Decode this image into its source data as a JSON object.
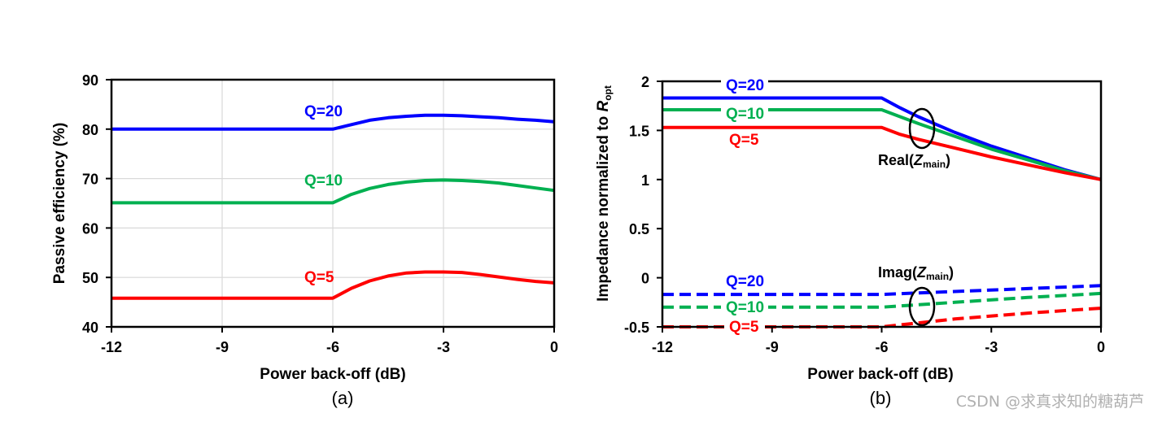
{
  "watermark": "CSDN @求真求知的糖葫芦",
  "chart_data": [
    {
      "type": "line",
      "caption": "(a)",
      "xlabel": "Power back-off (dB)",
      "ylabel": "Passive efficiency (%)",
      "xlim": [
        -12,
        0
      ],
      "ylim": [
        40,
        90
      ],
      "xticks": [
        -12,
        -9,
        -6,
        -3,
        0
      ],
      "xtick_labels": [
        "-12",
        "-9",
        "-6",
        "-3",
        "0"
      ],
      "yticks": [
        40,
        50,
        60,
        70,
        80,
        90
      ],
      "ytick_labels": [
        "40",
        "50",
        "60",
        "70",
        "80",
        "90"
      ],
      "grid": true,
      "series": [
        {
          "name": "Q=20",
          "color": "#0000ff",
          "dash": false,
          "x": [
            -12,
            -6.2,
            -6,
            -5.5,
            -5,
            -4.5,
            -4,
            -3.5,
            -3,
            -2.5,
            -2,
            -1.5,
            -1,
            -0.5,
            0
          ],
          "y": [
            80,
            80,
            80,
            80.9,
            81.8,
            82.3,
            82.6,
            82.8,
            82.8,
            82.7,
            82.5,
            82.3,
            82.0,
            81.8,
            81.5
          ]
        },
        {
          "name": "Q=10",
          "color": "#00b050",
          "dash": false,
          "x": [
            -12,
            -6.2,
            -6,
            -5.5,
            -5,
            -4.5,
            -4,
            -3.5,
            -3,
            -2.5,
            -2,
            -1.5,
            -1,
            -0.5,
            0
          ],
          "y": [
            65.1,
            65.1,
            65.1,
            66.8,
            68.0,
            68.8,
            69.3,
            69.6,
            69.7,
            69.6,
            69.4,
            69.1,
            68.6,
            68.1,
            67.6
          ]
        },
        {
          "name": "Q=5",
          "color": "#ff0000",
          "dash": false,
          "x": [
            -12,
            -6.2,
            -6,
            -5.5,
            -5,
            -4.5,
            -4,
            -3.5,
            -3,
            -2.5,
            -2,
            -1.5,
            -1,
            -0.5,
            0
          ],
          "y": [
            45.8,
            45.8,
            45.8,
            47.8,
            49.3,
            50.3,
            50.9,
            51.1,
            51.1,
            51.0,
            50.6,
            50.1,
            49.6,
            49.2,
            48.9
          ]
        }
      ]
    },
    {
      "type": "line",
      "caption": "(b)",
      "xlabel": "Power back-off (dB)",
      "ylabel_main": "Impedance normalized to ",
      "ylabel_var": "R",
      "ylabel_sub": "opt",
      "xlim": [
        -12,
        0
      ],
      "ylim": [
        -0.5,
        2
      ],
      "xticks": [
        -12,
        -9,
        -6,
        -3,
        0
      ],
      "xtick_labels": [
        "-12",
        "-9",
        "-6",
        "-3",
        "0"
      ],
      "yticks": [
        -0.5,
        0,
        0.5,
        1,
        1.5,
        2
      ],
      "ytick_labels": [
        "-0.5",
        "0",
        "0.5",
        "1",
        "1.5",
        "2"
      ],
      "grid": false,
      "annotations": [
        {
          "name": "real",
          "pre": "Real(",
          "var": "Z",
          "sub": "main",
          "post": ")"
        },
        {
          "name": "imag",
          "pre": "Imag(",
          "var": "Z",
          "sub": "main",
          "post": ")"
        }
      ],
      "series": [
        {
          "name": "Q=20",
          "component": "Real",
          "color": "#0000ff",
          "dash": false,
          "x": [
            -12,
            -6.2,
            -6,
            -5.5,
            -5,
            -4,
            -3,
            -2,
            -1,
            0
          ],
          "y": [
            1.83,
            1.83,
            1.83,
            1.73,
            1.64,
            1.48,
            1.34,
            1.22,
            1.1,
            1.0
          ]
        },
        {
          "name": "Q=10",
          "component": "Real",
          "color": "#00b050",
          "dash": false,
          "x": [
            -12,
            -6.2,
            -6,
            -5.5,
            -5,
            -4,
            -3,
            -2,
            -1,
            0
          ],
          "y": [
            1.71,
            1.71,
            1.71,
            1.64,
            1.57,
            1.44,
            1.31,
            1.2,
            1.09,
            1.0
          ]
        },
        {
          "name": "Q=5",
          "component": "Real",
          "color": "#ff0000",
          "dash": false,
          "x": [
            -12,
            -6.2,
            -6,
            -5.5,
            -5,
            -4,
            -3,
            -2,
            -1,
            0
          ],
          "y": [
            1.53,
            1.53,
            1.53,
            1.46,
            1.41,
            1.32,
            1.23,
            1.15,
            1.07,
            1.0
          ]
        },
        {
          "name": "Q=20",
          "component": "Imag",
          "color": "#0000ff",
          "dash": true,
          "x": [
            -12,
            -6,
            -4,
            -2,
            0
          ],
          "y": [
            -0.17,
            -0.17,
            -0.14,
            -0.11,
            -0.08
          ]
        },
        {
          "name": "Q=10",
          "component": "Imag",
          "color": "#00b050",
          "dash": true,
          "x": [
            -12,
            -6,
            -4,
            -2,
            0
          ],
          "y": [
            -0.3,
            -0.3,
            -0.25,
            -0.2,
            -0.16
          ]
        },
        {
          "name": "Q=5",
          "component": "Imag",
          "color": "#ff0000",
          "dash": true,
          "x": [
            -12,
            -6,
            -4,
            -2,
            0
          ],
          "y": [
            -0.5,
            -0.5,
            -0.42,
            -0.36,
            -0.31
          ]
        }
      ]
    }
  ]
}
